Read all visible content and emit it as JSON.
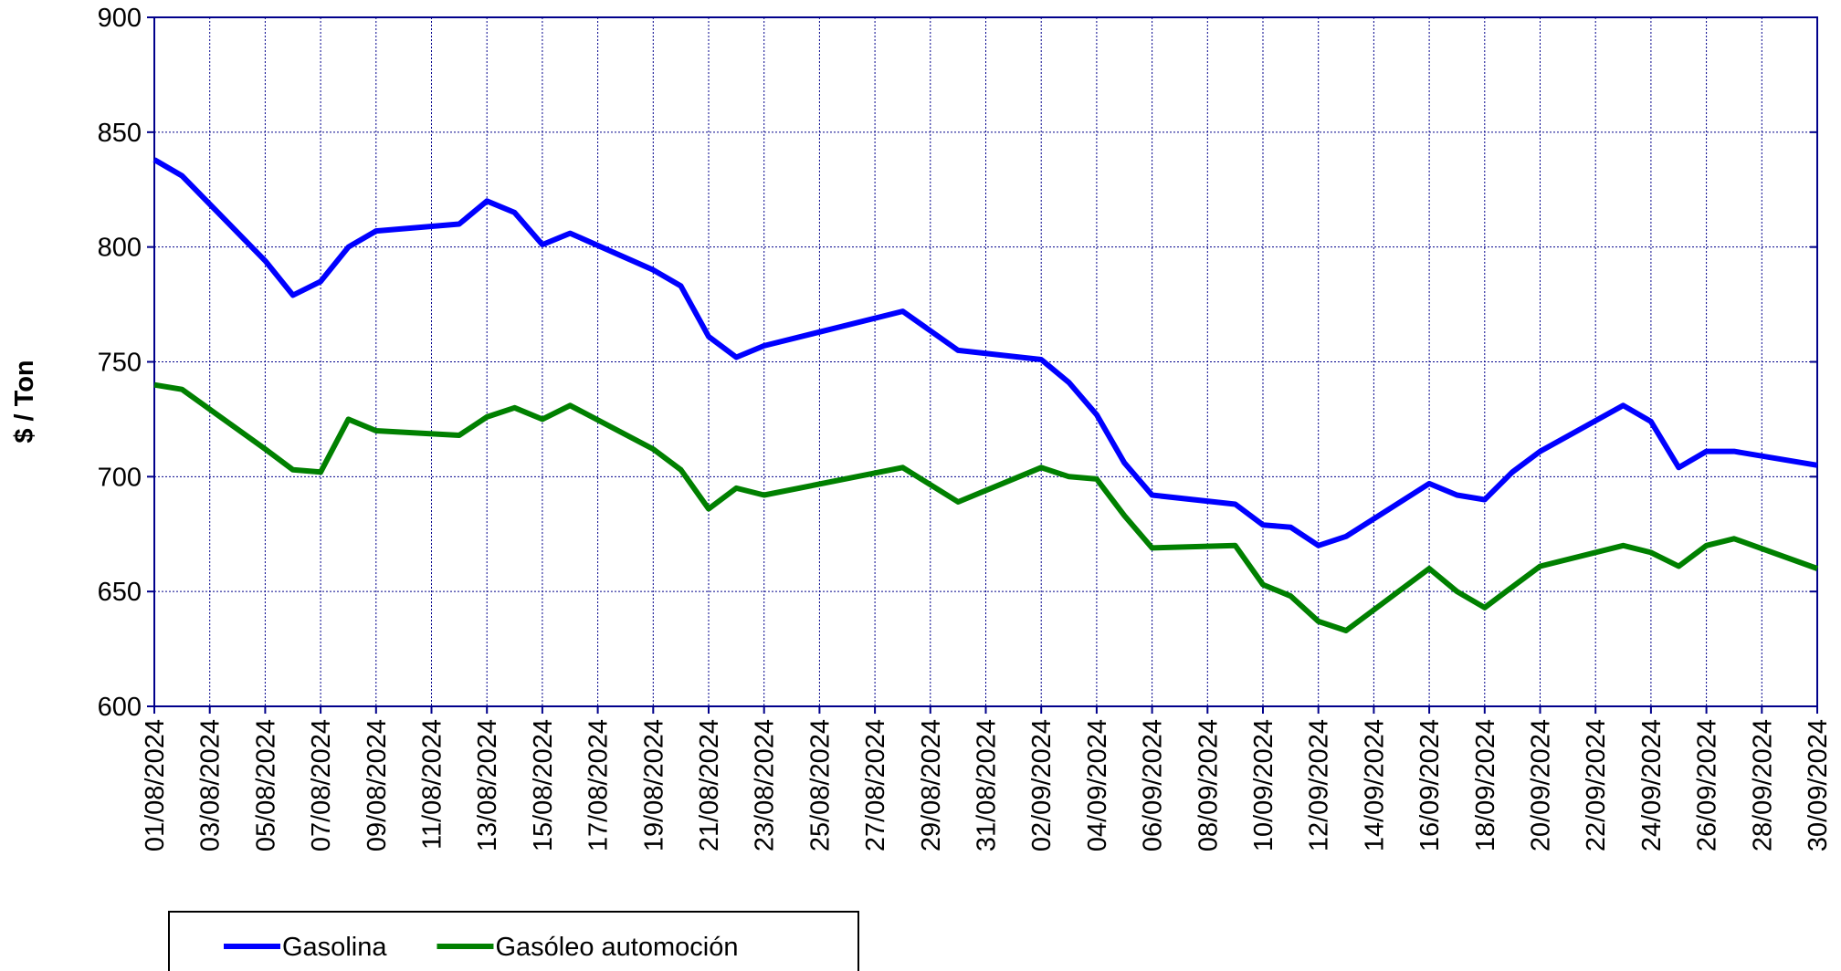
{
  "chart_data": {
    "type": "line",
    "y_label": "$ / Ton",
    "x": [
      "01/08/2024",
      "02/08/2024",
      "05/08/2024",
      "06/08/2024",
      "07/08/2024",
      "08/08/2024",
      "09/08/2024",
      "12/08/2024",
      "13/08/2024",
      "14/08/2024",
      "15/08/2024",
      "16/08/2024",
      "19/08/2024",
      "20/08/2024",
      "21/08/2024",
      "22/08/2024",
      "23/08/2024",
      "28/08/2024",
      "30/08/2024",
      "02/09/2024",
      "03/09/2024",
      "04/09/2024",
      "05/09/2024",
      "06/09/2024",
      "09/09/2024",
      "10/09/2024",
      "11/09/2024",
      "12/09/2024",
      "13/09/2024",
      "16/09/2024",
      "17/09/2024",
      "18/09/2024",
      "19/09/2024",
      "20/09/2024",
      "23/09/2024",
      "24/09/2024",
      "25/09/2024",
      "26/09/2024",
      "27/09/2024",
      "30/09/2024"
    ],
    "series": [
      {
        "name": "Gasolina",
        "color": "#0000ff",
        "values": [
          838,
          831,
          794,
          779,
          785,
          800,
          807,
          810,
          820,
          815,
          801,
          806,
          790,
          783,
          761,
          752,
          757,
          772,
          755,
          751,
          741,
          727,
          706,
          692,
          688,
          679,
          678,
          670,
          674,
          697,
          692,
          690,
          702,
          711,
          731,
          724,
          704,
          711,
          711,
          705
        ]
      },
      {
        "name": "Gasóleo automoción",
        "color": "#008000",
        "values": [
          740,
          738,
          712,
          703,
          702,
          725,
          720,
          718,
          726,
          730,
          725,
          731,
          712,
          703,
          686,
          695,
          692,
          704,
          689,
          704,
          700,
          699,
          683,
          669,
          670,
          653,
          648,
          637,
          633,
          660,
          650,
          643,
          652,
          661,
          670,
          667,
          661,
          670,
          673,
          660
        ]
      }
    ],
    "xlim": [
      "01/08/2024",
      "30/09/2024"
    ],
    "xticks": [
      "01/08/2024",
      "03/08/2024",
      "05/08/2024",
      "07/08/2024",
      "09/08/2024",
      "11/08/2024",
      "13/08/2024",
      "15/08/2024",
      "17/08/2024",
      "19/08/2024",
      "21/08/2024",
      "23/08/2024",
      "25/08/2024",
      "27/08/2024",
      "29/08/2024",
      "31/08/2024",
      "02/09/2024",
      "04/09/2024",
      "06/09/2024",
      "08/09/2024",
      "10/09/2024",
      "12/09/2024",
      "14/09/2024",
      "16/09/2024",
      "18/09/2024",
      "20/09/2024",
      "22/09/2024",
      "24/09/2024",
      "26/09/2024",
      "28/09/2024",
      "30/09/2024"
    ],
    "ylim": [
      600,
      900
    ],
    "yticks": [
      600,
      650,
      700,
      750,
      800,
      850,
      900
    ],
    "grid": true,
    "legend": "bottom"
  }
}
